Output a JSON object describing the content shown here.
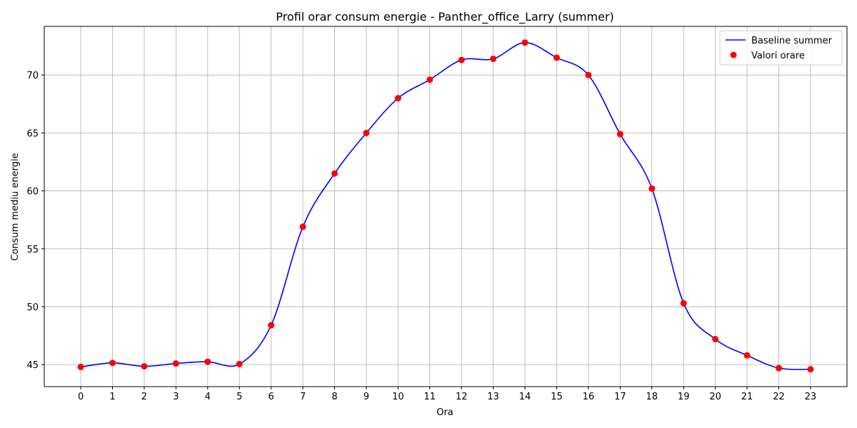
{
  "chart_data": {
    "type": "line",
    "title": "Profil orar consum energie - Panther_office_Larry (summer)",
    "xlabel": "Ora",
    "ylabel": "Consum mediu energie",
    "x": [
      0,
      1,
      2,
      3,
      4,
      5,
      6,
      7,
      8,
      9,
      10,
      11,
      12,
      13,
      14,
      15,
      16,
      17,
      18,
      19,
      20,
      21,
      22,
      23
    ],
    "xticks": [
      "0",
      "1",
      "2",
      "3",
      "4",
      "5",
      "6",
      "7",
      "8",
      "9",
      "10",
      "11",
      "12",
      "13",
      "14",
      "15",
      "16",
      "17",
      "18",
      "19",
      "20",
      "21",
      "22",
      "23"
    ],
    "yticks": [
      "45",
      "50",
      "55",
      "60",
      "65",
      "70"
    ],
    "ylim": [
      43.1,
      74.2
    ],
    "grid": true,
    "legend_position": "top-right",
    "series": [
      {
        "name": "Baseline summer",
        "kind": "line",
        "color": "#0000ff",
        "values": [
          44.8,
          45.15,
          44.85,
          45.1,
          45.25,
          45.05,
          48.4,
          56.9,
          61.5,
          65.0,
          68.0,
          69.6,
          71.3,
          71.4,
          72.8,
          71.5,
          70.0,
          64.9,
          60.2,
          50.3,
          47.2,
          45.8,
          44.7,
          44.6
        ]
      },
      {
        "name": "Valori orare",
        "kind": "scatter",
        "color": "#ff0000",
        "values": [
          44.8,
          45.15,
          44.85,
          45.1,
          45.25,
          45.05,
          48.4,
          56.9,
          61.5,
          65.0,
          68.0,
          69.6,
          71.3,
          71.4,
          72.8,
          71.5,
          70.0,
          64.9,
          60.2,
          50.3,
          47.2,
          45.8,
          44.7,
          44.6
        ]
      }
    ]
  }
}
